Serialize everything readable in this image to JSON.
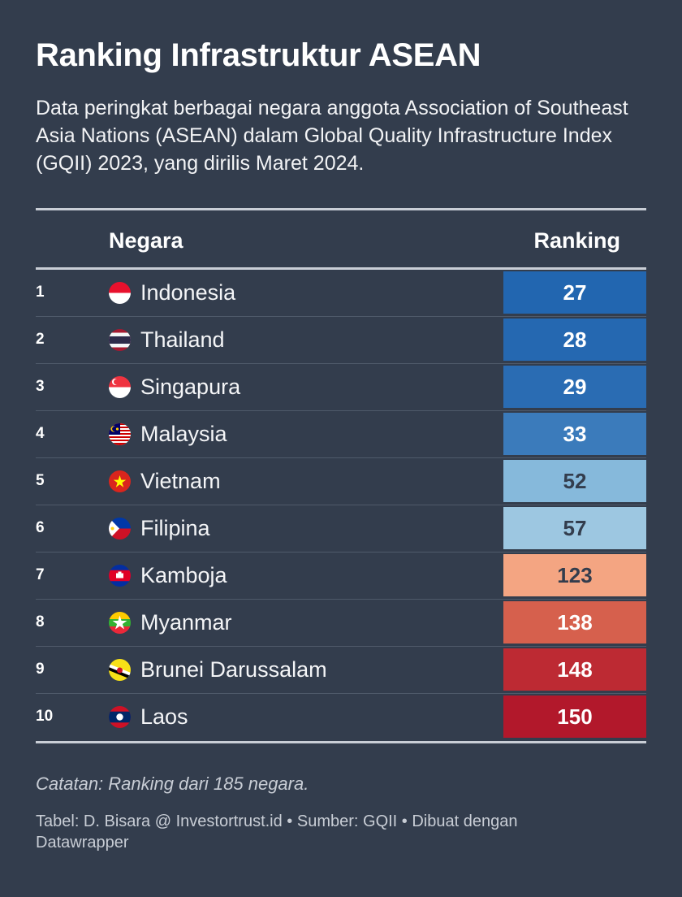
{
  "title": "Ranking Infrastruktur ASEAN",
  "subtitle": "Data peringkat berbagai negara anggota Association of Southeast Asia Nations (ASEAN) dalam Global Quality Infrastructure Index (GQII) 2023, yang dirilis Maret 2024.",
  "note": "Catatan: Ranking dari 185 negara.",
  "credit": "Tabel: D. Bisara @ Investortrust.id • Sumber: GQII • Dibuat dengan Datawrapper",
  "chart_data": {
    "type": "table",
    "title": "Ranking Infrastruktur ASEAN",
    "columns": [
      "",
      "Negara",
      "Ranking"
    ],
    "rows": [
      {
        "no": "1",
        "country": "Indonesia",
        "flag": "indonesia-flag-icon",
        "ranking": 27,
        "color": "#2266b0",
        "text_color": "#ffffff"
      },
      {
        "no": "2",
        "country": "Thailand",
        "flag": "thailand-flag-icon",
        "ranking": 28,
        "color": "#2568b1",
        "text_color": "#ffffff"
      },
      {
        "no": "3",
        "country": "Singapura",
        "flag": "singapore-flag-icon",
        "ranking": 29,
        "color": "#2a6cb3",
        "text_color": "#ffffff"
      },
      {
        "no": "4",
        "country": "Malaysia",
        "flag": "malaysia-flag-icon",
        "ranking": 33,
        "color": "#3b7bbb",
        "text_color": "#ffffff"
      },
      {
        "no": "5",
        "country": "Vietnam",
        "flag": "vietnam-flag-icon",
        "ranking": 52,
        "color": "#86b9db",
        "text_color": "#333d4d"
      },
      {
        "no": "6",
        "country": "Filipina",
        "flag": "philippines-flag-icon",
        "ranking": 57,
        "color": "#9dc7e1",
        "text_color": "#333d4d"
      },
      {
        "no": "7",
        "country": "Kamboja",
        "flag": "cambodia-flag-icon",
        "ranking": 123,
        "color": "#f4a582",
        "text_color": "#333d4d"
      },
      {
        "no": "8",
        "country": "Myanmar",
        "flag": "myanmar-flag-icon",
        "ranking": 138,
        "color": "#d6604d",
        "text_color": "#ffffff"
      },
      {
        "no": "9",
        "country": "Brunei Darussalam",
        "flag": "brunei-flag-icon",
        "ranking": 148,
        "color": "#bd2a33",
        "text_color": "#ffffff"
      },
      {
        "no": "10",
        "country": "Laos",
        "flag": "laos-flag-icon",
        "ranking": 150,
        "color": "#b2182b",
        "text_color": "#ffffff"
      }
    ]
  }
}
